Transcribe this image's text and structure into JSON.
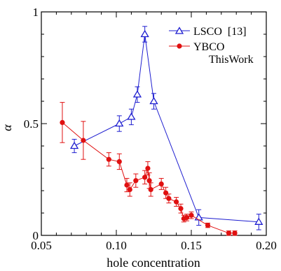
{
  "chart_data": {
    "type": "scatter",
    "xlabel": "hole concentration",
    "ylabel": "α",
    "xlim": [
      0.05,
      0.2
    ],
    "ylim": [
      0,
      1
    ],
    "x_ticks": [
      0.05,
      0.1,
      0.15,
      0.2
    ],
    "x_tick_labels": [
      "0.05",
      "0.10",
      "0.15",
      "0.20"
    ],
    "y_ticks": [
      0,
      0.5,
      1
    ],
    "y_tick_labels": [
      "0",
      "0.5",
      "1"
    ],
    "grid": false,
    "legend_position": "top-right",
    "series": [
      {
        "name": "LSCO  [13]",
        "color": "#1f1fd0",
        "marker": "open-triangle",
        "connected": true,
        "points": [
          {
            "x": 0.072,
            "y": 0.4,
            "err": 0.03
          },
          {
            "x": 0.102,
            "y": 0.5,
            "err": 0.035
          },
          {
            "x": 0.11,
            "y": 0.53,
            "err": 0.035
          },
          {
            "x": 0.114,
            "y": 0.63,
            "err": 0.035
          },
          {
            "x": 0.119,
            "y": 0.9,
            "err": 0.035
          },
          {
            "x": 0.125,
            "y": 0.6,
            "err": 0.035
          },
          {
            "x": 0.155,
            "y": 0.08,
            "err": 0.035
          },
          {
            "x": 0.195,
            "y": 0.06,
            "err": 0.035
          }
        ]
      },
      {
        "name": "YBCO",
        "name_line2": "ThisWork",
        "color": "#e01010",
        "marker": "filled-circle",
        "connected": true,
        "points": [
          {
            "x": 0.064,
            "y": 0.505,
            "err": 0.09
          },
          {
            "x": 0.078,
            "y": 0.425,
            "err": 0.085
          },
          {
            "x": 0.095,
            "y": 0.34,
            "err": 0.03
          },
          {
            "x": 0.102,
            "y": 0.33,
            "err": 0.035
          },
          {
            "x": 0.107,
            "y": 0.225,
            "err": 0.03
          },
          {
            "x": 0.109,
            "y": 0.205,
            "err": 0.03
          },
          {
            "x": 0.113,
            "y": 0.245,
            "err": 0.03
          },
          {
            "x": 0.119,
            "y": 0.26,
            "err": 0.03
          },
          {
            "x": 0.121,
            "y": 0.3,
            "err": 0.03
          },
          {
            "x": 0.122,
            "y": 0.245,
            "err": 0.035
          },
          {
            "x": 0.123,
            "y": 0.205,
            "err": 0.03
          },
          {
            "x": 0.13,
            "y": 0.23,
            "err": 0.025
          },
          {
            "x": 0.133,
            "y": 0.19,
            "err": 0.025
          },
          {
            "x": 0.135,
            "y": 0.165,
            "err": 0.02
          },
          {
            "x": 0.14,
            "y": 0.15,
            "err": 0.02
          },
          {
            "x": 0.143,
            "y": 0.12,
            "err": 0.02
          },
          {
            "x": 0.145,
            "y": 0.075,
            "err": 0.015
          },
          {
            "x": 0.147,
            "y": 0.08,
            "err": 0.015
          },
          {
            "x": 0.15,
            "y": 0.09,
            "err": 0.015
          },
          {
            "x": 0.161,
            "y": 0.045,
            "err": 0.01
          },
          {
            "x": 0.175,
            "y": 0.01,
            "err": 0.01
          },
          {
            "x": 0.179,
            "y": 0.01,
            "err": 0.01
          }
        ]
      }
    ]
  }
}
